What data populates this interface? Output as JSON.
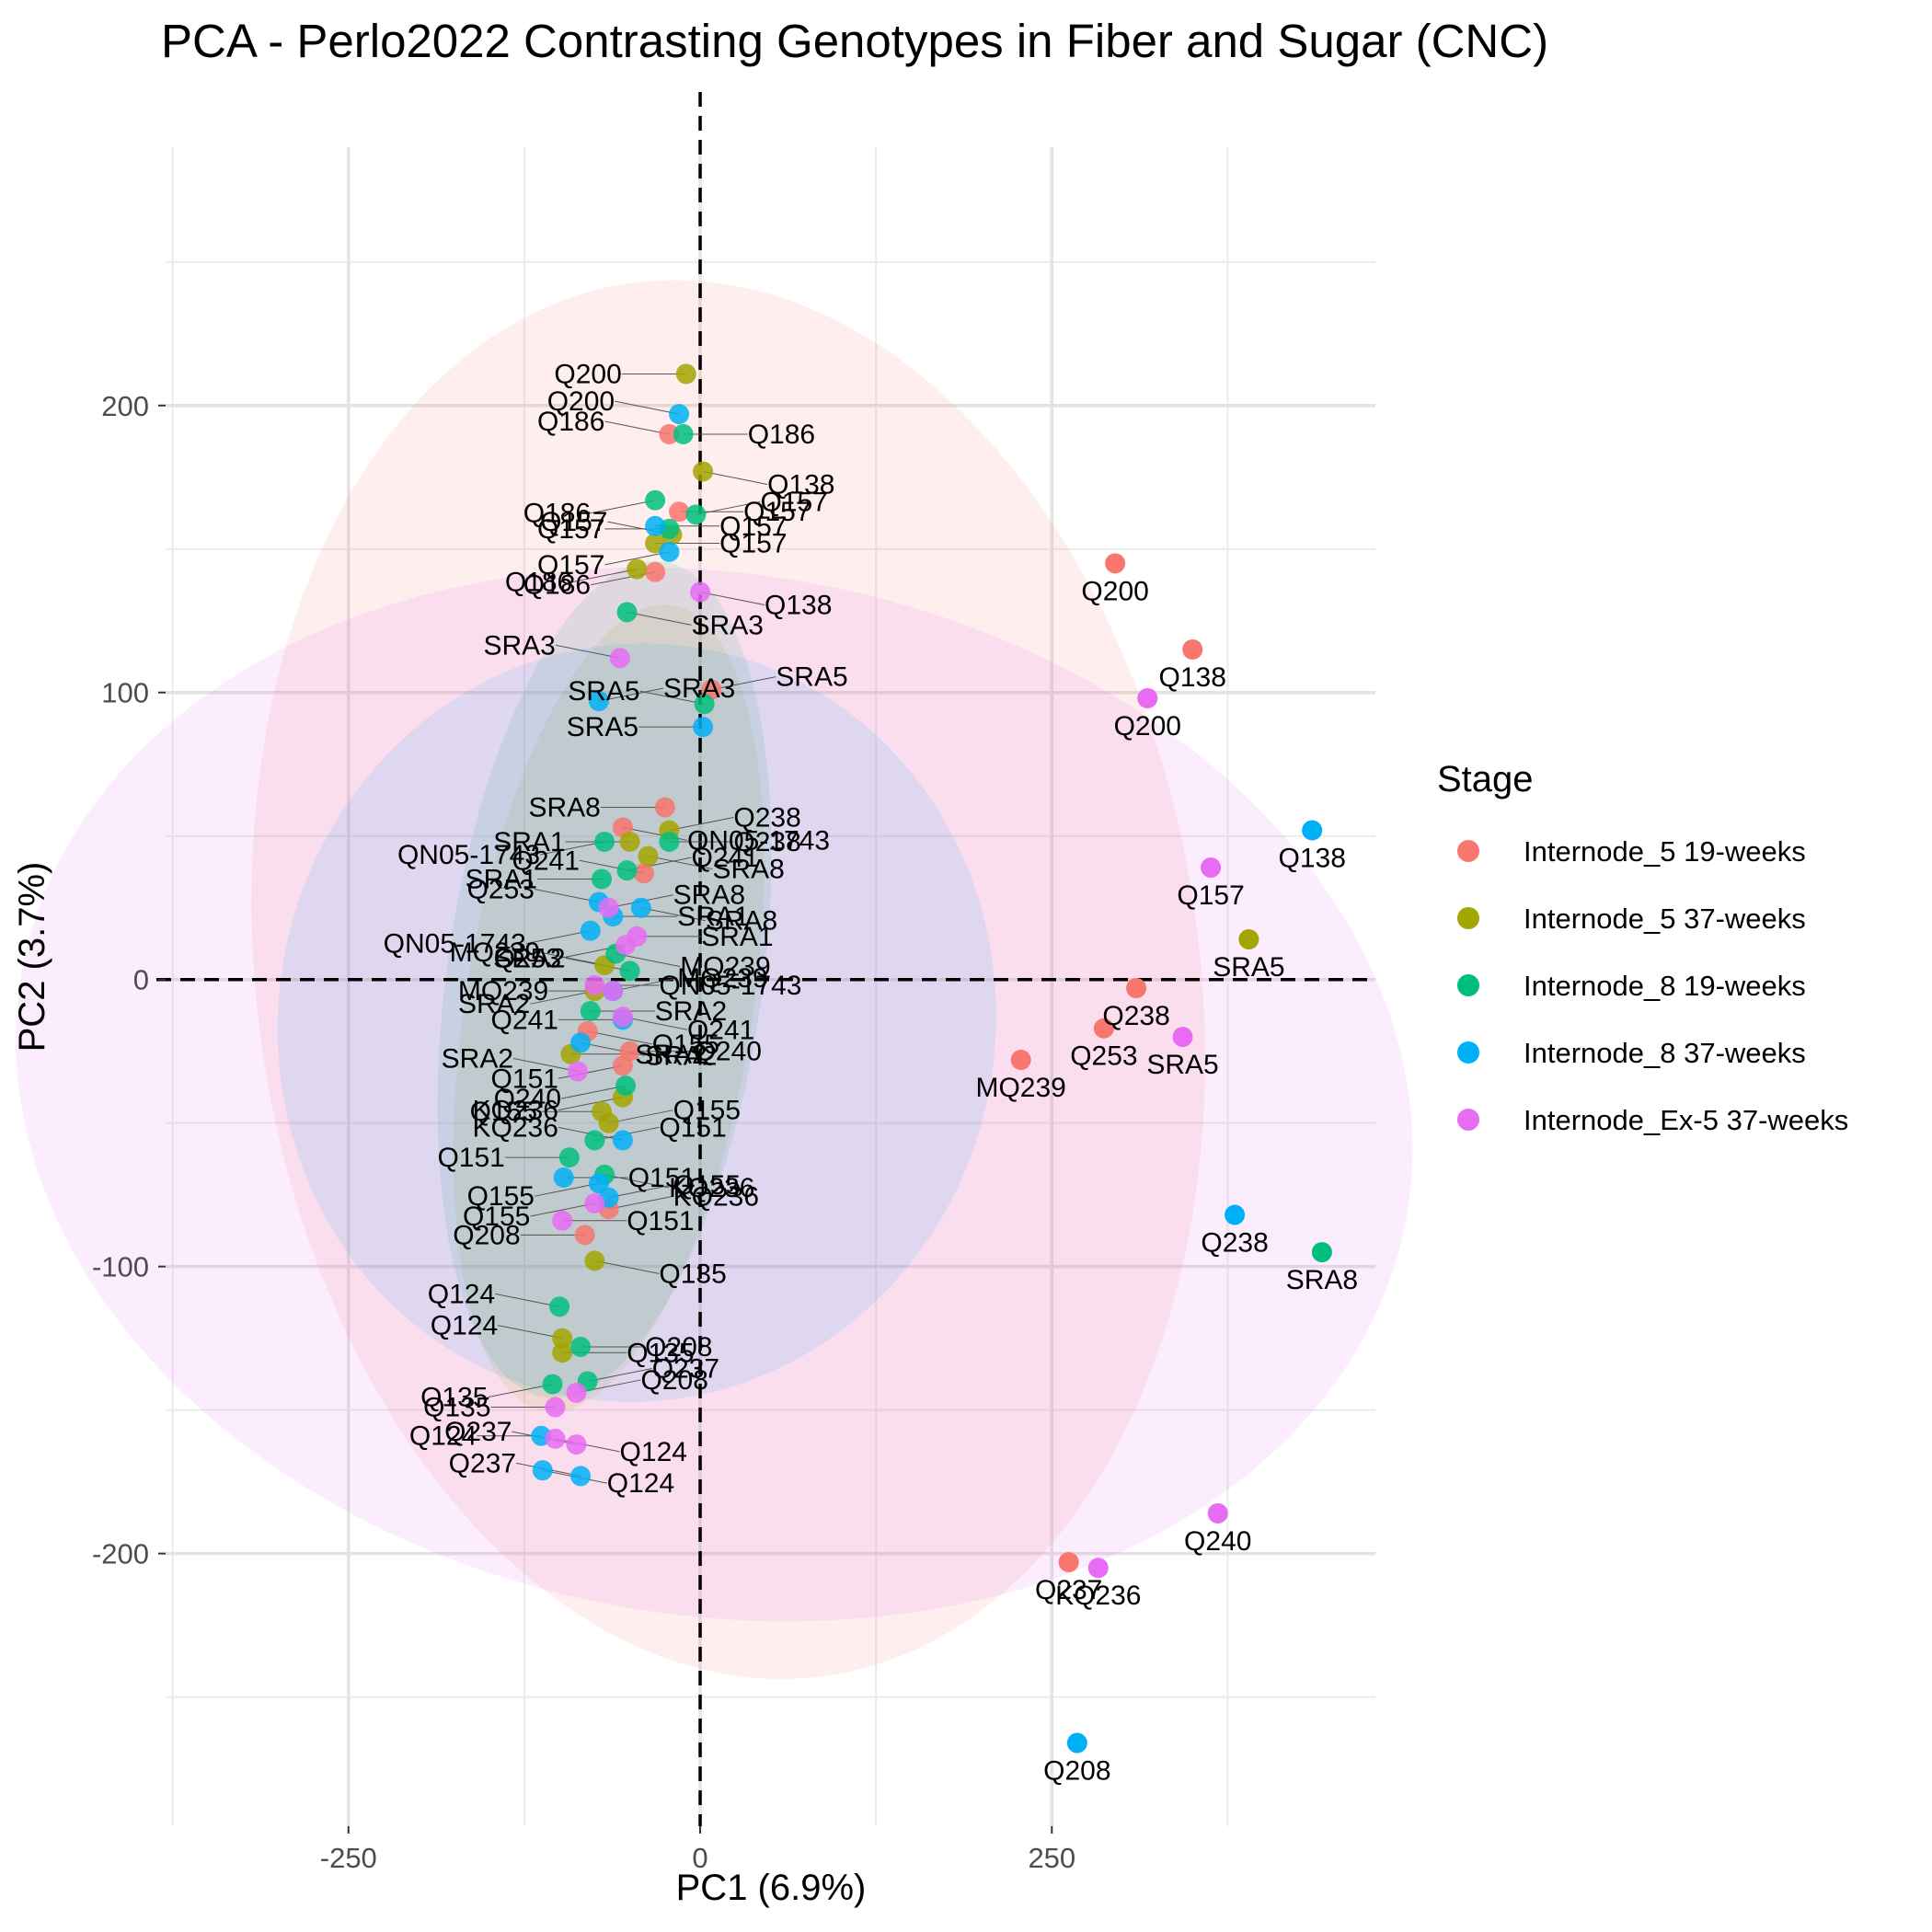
{
  "chart_data": {
    "type": "scatter",
    "title": "PCA - Perlo2022 Contrasting Genotypes in Fiber and Sugar (CNC)",
    "xlabel": "PC1 (6.9%)",
    "ylabel": "PC2 (3.7%)",
    "xlim": [
      -380,
      480
    ],
    "ylim": [
      -295,
      290
    ],
    "xticks": [
      -250,
      0,
      250
    ],
    "yticks": [
      -200,
      -100,
      0,
      100,
      200
    ],
    "xtick_labels": [
      "-250",
      "0",
      "250"
    ],
    "ytick_labels": [
      "-200",
      "-100",
      "0",
      "100",
      "200"
    ],
    "grid": true,
    "reference_lines": {
      "x": 0,
      "y": 0,
      "style": "dashed"
    },
    "legend": {
      "title": "Stage",
      "position": "right",
      "entries": [
        {
          "label": "Internode_5 19-weeks",
          "color": "#F8766D"
        },
        {
          "label": "Internode_5 37-weeks",
          "color": "#A3A500"
        },
        {
          "label": "Internode_8 19-weeks",
          "color": "#00BF7D"
        },
        {
          "label": "Internode_8 37-weeks",
          "color": "#00B0F6"
        },
        {
          "label": "Internode_Ex-5 37-weeks",
          "color": "#E76BF3"
        }
      ]
    },
    "series": [
      {
        "name": "Internode_5 19-weeks",
        "color": "#F8766D",
        "ellipse": {
          "cx": 20,
          "cy": 0,
          "rx": 335,
          "ry": 245,
          "angle": -8
        },
        "points": [
          {
            "x": 295,
            "y": 145,
            "label": "Q200"
          },
          {
            "x": 350,
            "y": 115,
            "label": "Q138"
          },
          {
            "x": 310,
            "y": -3,
            "label": "Q238"
          },
          {
            "x": 287,
            "y": -17,
            "label": "Q253"
          },
          {
            "x": 228,
            "y": -28,
            "label": "MQ239"
          },
          {
            "x": 262,
            "y": -203,
            "label": "Q237"
          },
          {
            "x": -22,
            "y": 190,
            "label": "Q186"
          },
          {
            "x": -15,
            "y": 163,
            "label": "Q157"
          },
          {
            "x": -32,
            "y": 142,
            "label": "Q186"
          },
          {
            "x": 8,
            "y": 101,
            "label": "SRA5"
          },
          {
            "x": -25,
            "y": 60,
            "label": "SRA8"
          },
          {
            "x": -55,
            "y": 53,
            "label": "QN05-1743"
          },
          {
            "x": -40,
            "y": 37,
            "label": "Q241"
          },
          {
            "x": -50,
            "y": -25,
            "label": "Q240"
          },
          {
            "x": -55,
            "y": -30,
            "label": "Q151"
          },
          {
            "x": -65,
            "y": -80,
            "label": "KQ236"
          },
          {
            "x": -82,
            "y": -89,
            "label": "Q208"
          },
          {
            "x": -80,
            "y": -18,
            "label": "Q155"
          }
        ]
      },
      {
        "name": "Internode_5 37-weeks",
        "color": "#A3A500",
        "ellipse": {
          "cx": -65,
          "cy": -10,
          "rx": 290,
          "ry": 50,
          "angle": -81
        },
        "points": [
          {
            "x": 390,
            "y": 14,
            "label": "SRA5"
          },
          {
            "x": -10,
            "y": 211,
            "label": "Q200"
          },
          {
            "x": 2,
            "y": 177,
            "label": "Q138"
          },
          {
            "x": -20,
            "y": 155,
            "label": "Q157"
          },
          {
            "x": -32,
            "y": 152,
            "label": "Q157"
          },
          {
            "x": -45,
            "y": 143,
            "label": "Q186"
          },
          {
            "x": -22,
            "y": 52,
            "label": "Q238"
          },
          {
            "x": -50,
            "y": 48,
            "label": "SRA1"
          },
          {
            "x": -37,
            "y": 43,
            "label": "SRA8"
          },
          {
            "x": -68,
            "y": 5,
            "label": "MQ239"
          },
          {
            "x": -92,
            "y": -26,
            "label": "SRA2"
          },
          {
            "x": -55,
            "y": -41,
            "label": "KQ236"
          },
          {
            "x": -65,
            "y": -50,
            "label": "Q155"
          },
          {
            "x": -70,
            "y": -46,
            "label": "Q155"
          },
          {
            "x": -75,
            "y": -98,
            "label": "Q135"
          },
          {
            "x": -98,
            "y": -125,
            "label": "Q124"
          },
          {
            "x": -98,
            "y": -130,
            "label": "Q135"
          },
          {
            "x": -75,
            "y": -4,
            "label": "SRA2"
          }
        ]
      },
      {
        "name": "Internode_8 19-weeks",
        "color": "#00BF7D",
        "ellipse": {
          "cx": -68,
          "cy": 0,
          "rx": 300,
          "ry": 55,
          "angle": -82
        },
        "points": [
          {
            "x": 442,
            "y": -95,
            "label": "SRA8"
          },
          {
            "x": -12,
            "y": 190,
            "label": "Q186"
          },
          {
            "x": -32,
            "y": 167,
            "label": "Q186"
          },
          {
            "x": -3,
            "y": 162,
            "label": "Q157"
          },
          {
            "x": -22,
            "y": 157,
            "label": "Q157"
          },
          {
            "x": -52,
            "y": 128,
            "label": "SRA3"
          },
          {
            "x": 3,
            "y": 96,
            "label": "SRA5"
          },
          {
            "x": -22,
            "y": 48,
            "label": "Q238"
          },
          {
            "x": -68,
            "y": 48,
            "label": "QN05-1743"
          },
          {
            "x": -52,
            "y": 38,
            "label": "Q241"
          },
          {
            "x": -70,
            "y": 35,
            "label": "SRA1"
          },
          {
            "x": -60,
            "y": 9,
            "label": "MQ239"
          },
          {
            "x": -50,
            "y": 3,
            "label": "SRA2"
          },
          {
            "x": -78,
            "y": -11,
            "label": "SRA2"
          },
          {
            "x": -53,
            "y": -37,
            "label": "Q240"
          },
          {
            "x": -75,
            "y": -56,
            "label": "Q151"
          },
          {
            "x": -93,
            "y": -62,
            "label": "Q151"
          },
          {
            "x": -68,
            "y": -68,
            "label": "KQ236"
          },
          {
            "x": -100,
            "y": -114,
            "label": "Q124"
          },
          {
            "x": -85,
            "y": -128,
            "label": "Q208"
          },
          {
            "x": -105,
            "y": -141,
            "label": "Q135"
          },
          {
            "x": -80,
            "y": -140,
            "label": "Q237"
          }
        ]
      },
      {
        "name": "Internode_8 37-weeks",
        "color": "#00B0F6",
        "ellipse": {
          "cx": -45,
          "cy": -15,
          "rx": 270,
          "ry": 125,
          "angle": -81
        },
        "points": [
          {
            "x": 435,
            "y": 52,
            "label": "Q138"
          },
          {
            "x": 380,
            "y": -82,
            "label": "Q238"
          },
          {
            "x": 268,
            "y": -266,
            "label": "Q208"
          },
          {
            "x": -15,
            "y": 197,
            "label": "Q200"
          },
          {
            "x": -32,
            "y": 158,
            "label": "Q157"
          },
          {
            "x": -22,
            "y": 149,
            "label": "Q157"
          },
          {
            "x": -72,
            "y": 97,
            "label": "SRA3"
          },
          {
            "x": 2,
            "y": 88,
            "label": "SRA5"
          },
          {
            "x": -42,
            "y": 25,
            "label": "SRA8"
          },
          {
            "x": -72,
            "y": 27,
            "label": "Q253"
          },
          {
            "x": -62,
            "y": 22,
            "label": "SRA1"
          },
          {
            "x": -78,
            "y": 17,
            "label": "QN05-1743"
          },
          {
            "x": -62,
            "y": -4,
            "label": "MQ239"
          },
          {
            "x": -55,
            "y": -14,
            "label": "Q241"
          },
          {
            "x": -85,
            "y": -22,
            "label": "SRA2"
          },
          {
            "x": -55,
            "y": -56,
            "label": "KQ236"
          },
          {
            "x": -97,
            "y": -69,
            "label": "Q151"
          },
          {
            "x": -72,
            "y": -71,
            "label": "Q155"
          },
          {
            "x": -65,
            "y": -76,
            "label": "Q155"
          },
          {
            "x": -113,
            "y": -159,
            "label": "Q124"
          },
          {
            "x": -112,
            "y": -171,
            "label": "Q124"
          },
          {
            "x": -85,
            "y": -173,
            "label": "Q237"
          }
        ]
      },
      {
        "name": "Internode_Ex-5 37-weeks",
        "color": "#E76BF3",
        "ellipse": {
          "cx": 10,
          "cy": -40,
          "rx": 370,
          "ry": 245,
          "angle": -80
        },
        "points": [
          {
            "x": 318,
            "y": 98,
            "label": "Q200"
          },
          {
            "x": 363,
            "y": 39,
            "label": "Q157"
          },
          {
            "x": 343,
            "y": -20,
            "label": "SRA5"
          },
          {
            "x": 368,
            "y": -186,
            "label": "Q240"
          },
          {
            "x": 283,
            "y": -205,
            "label": "KQ236"
          },
          {
            "x": 0,
            "y": 135,
            "label": "Q138"
          },
          {
            "x": -57,
            "y": 112,
            "label": "SRA3"
          },
          {
            "x": -45,
            "y": 15,
            "label": "SRA1"
          },
          {
            "x": -53,
            "y": 12,
            "label": "Q253"
          },
          {
            "x": -65,
            "y": 25,
            "label": "SRA8"
          },
          {
            "x": -62,
            "y": -4,
            "label": "MQ239"
          },
          {
            "x": -55,
            "y": -13,
            "label": "Q241"
          },
          {
            "x": -87,
            "y": -32,
            "label": "SRA2"
          },
          {
            "x": -98,
            "y": -84,
            "label": "Q151"
          },
          {
            "x": -75,
            "y": -78,
            "label": "Q155"
          },
          {
            "x": -88,
            "y": -144,
            "label": "Q208"
          },
          {
            "x": -103,
            "y": -149,
            "label": "Q135"
          },
          {
            "x": -103,
            "y": -160,
            "label": "Q124"
          },
          {
            "x": -88,
            "y": -162,
            "label": "Q237"
          },
          {
            "x": -75,
            "y": -2,
            "label": "QN05-1743"
          }
        ]
      }
    ]
  }
}
